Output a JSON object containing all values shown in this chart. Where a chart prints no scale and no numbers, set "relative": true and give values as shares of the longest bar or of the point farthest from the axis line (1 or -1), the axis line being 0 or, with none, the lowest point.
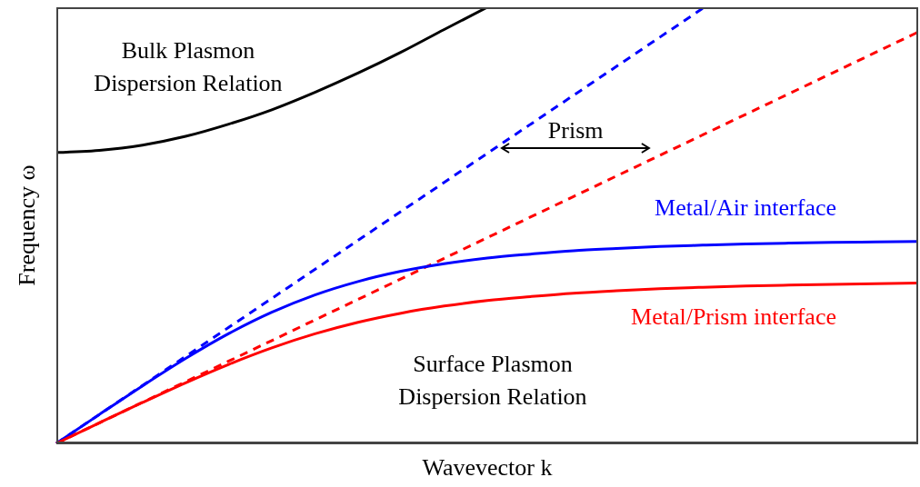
{
  "chart_data": {
    "type": "line",
    "relative": true,
    "xlabel": "Wavevector k",
    "ylabel": "Frequency ω",
    "grid": false,
    "legend": false,
    "marker": "none",
    "categories": [
      null,
      null,
      null,
      null,
      null,
      null,
      null,
      null,
      null,
      null,
      null,
      null,
      null,
      null,
      null,
      null,
      null,
      null,
      null,
      null,
      null
    ],
    "series": [
      {
        "color": "#000000",
        "line_style": "solid",
        "values": [
          0.667,
          0.672,
          0.684,
          0.704,
          0.732,
          0.765,
          0.805,
          0.849,
          0.897,
          0.949,
          1.0,
          null,
          null,
          null,
          null,
          null,
          null,
          null,
          null,
          null,
          null
        ]
      },
      {
        "color": "#0000ff",
        "line_style": "dashed",
        "values": [
          0,
          0.0665,
          0.133,
          0.1995,
          0.266,
          0.3325,
          0.399,
          0.4655,
          0.532,
          0.5985,
          0.665,
          0.7315,
          0.798,
          0.8645,
          0.931,
          0.9975,
          null,
          null,
          null,
          null,
          null
        ]
      },
      {
        "color": "#ff0000",
        "line_style": "dashed",
        "values": [
          0,
          0.0472,
          0.0943,
          0.1415,
          0.1886,
          0.2358,
          0.283,
          0.3301,
          0.3773,
          0.4244,
          0.4716,
          0.5188,
          0.5659,
          0.6131,
          0.6602,
          0.7074,
          0.7546,
          0.8017,
          0.8489,
          0.896,
          0.9432
        ]
      },
      {
        "name": "Metal/Air interface",
        "color": "#0000ff",
        "line_style": "solid",
        "values": [
          0,
          0.0664,
          0.132,
          0.1947,
          0.2517,
          0.3006,
          0.3404,
          0.3712,
          0.3947,
          0.4122,
          0.4249,
          0.434,
          0.4419,
          0.447,
          0.4515,
          0.4545,
          0.4572,
          0.4592,
          0.4609,
          0.462,
          0.4631
        ]
      },
      {
        "name": "Metal/Prism interface",
        "color": "#ff0000",
        "line_style": "solid",
        "values": [
          0,
          0.0472,
          0.0938,
          0.139,
          0.1812,
          0.219,
          0.2512,
          0.2776,
          0.2985,
          0.3149,
          0.3275,
          0.3365,
          0.3444,
          0.35,
          0.3546,
          0.358,
          0.3609,
          0.363,
          0.3648,
          0.3662,
          0.3676
        ]
      }
    ],
    "annotations": [
      "Bulk Plasmon Dispersion Relation",
      "Surface Plasmon Dispersion Relation",
      "Prism"
    ]
  }
}
